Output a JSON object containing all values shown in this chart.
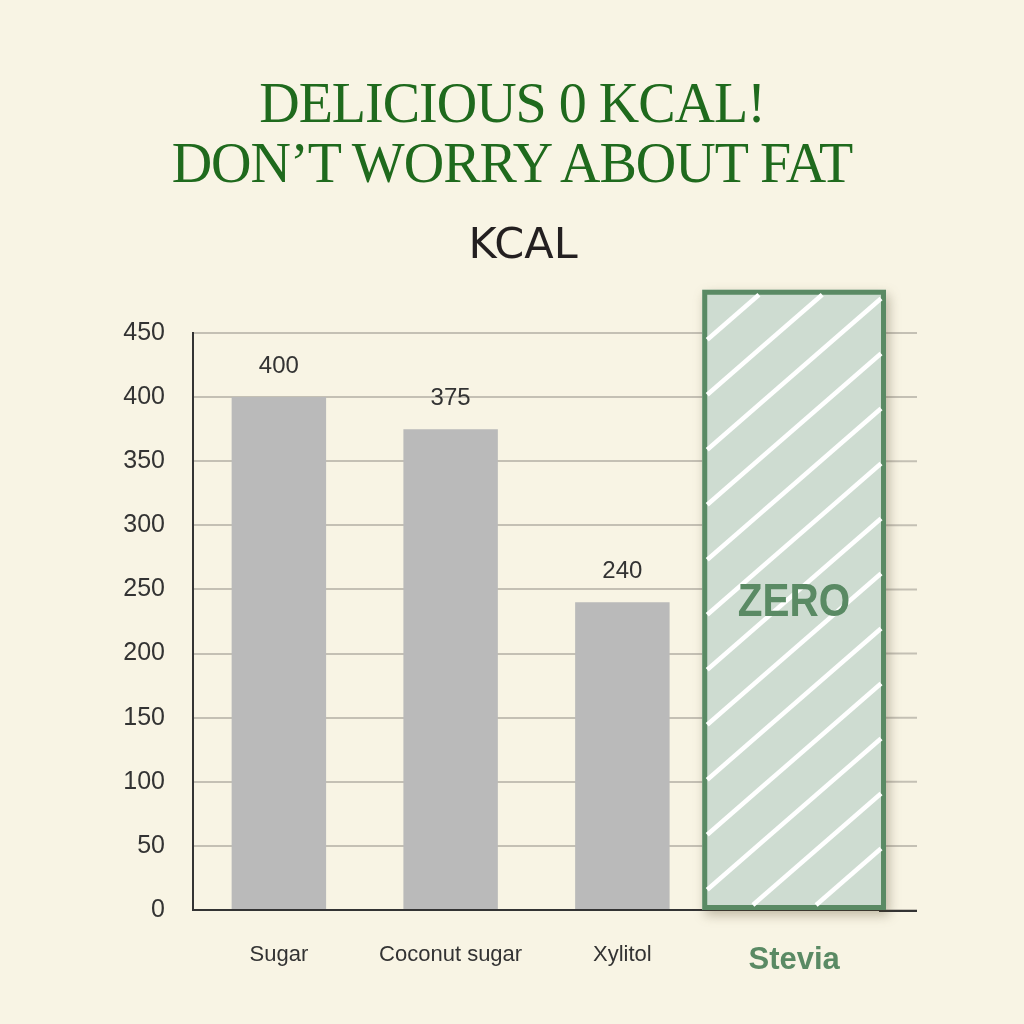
{
  "chart_data": {
    "type": "bar",
    "title": "DELICIOUS 0 KCAL!\nDON’T WORRY ABOUT FAT",
    "ylabel": "KCAL",
    "categories": [
      "Sugar",
      "Coconut sugar",
      "Xylitol",
      "Stevia"
    ],
    "values": [
      400,
      375,
      240,
      0
    ],
    "color": "#bababa",
    "value_labels": [
      "400",
      "375",
      "240",
      null
    ],
    "ylim": [
      0,
      450
    ],
    "yticks": [
      0,
      50,
      100,
      150,
      200,
      250,
      300,
      350,
      400,
      450
    ],
    "grid": "y",
    "bands": [
      {
        "axis": "x",
        "from": "Stevia",
        "to": "Stevia",
        "label": "ZERO",
        "color": "#cedcd1"
      }
    ]
  }
}
